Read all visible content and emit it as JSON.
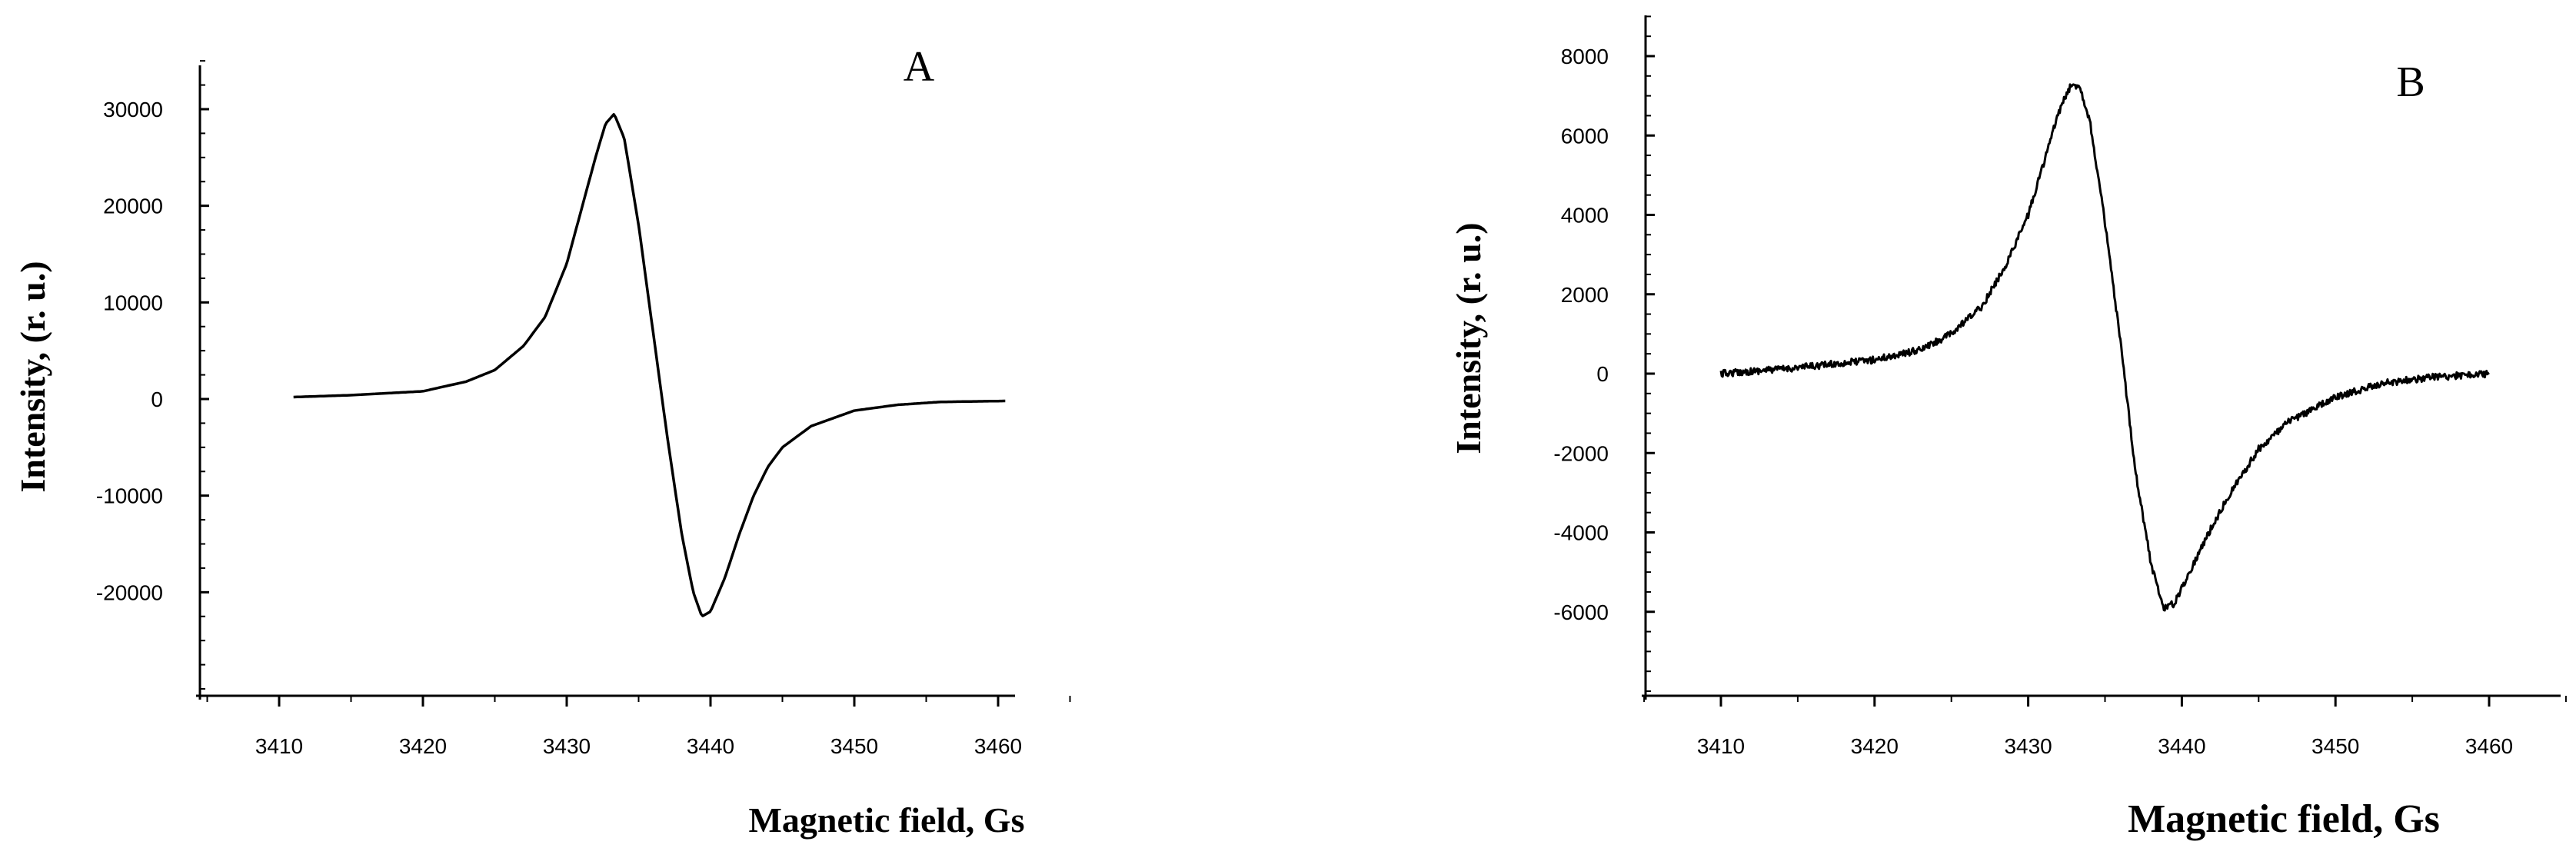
{
  "chart_data": [
    {
      "type": "line",
      "panel_label": "A",
      "xlabel": "Magnetic field, Gs",
      "ylabel": "Intensity, (r. u.)",
      "xlim": [
        3405,
        3465
      ],
      "ylim": [
        -30000,
        35000
      ],
      "xticks": [
        3410,
        3420,
        3430,
        3440,
        3450,
        3460
      ],
      "xtick_labels": [
        "3410",
        "3420",
        "3430",
        "3440",
        "3450",
        "3460"
      ],
      "yticks": [
        -20000,
        -10000,
        0,
        10000,
        20000,
        30000
      ],
      "ytick_labels": [
        "-20000",
        "-10000",
        "0",
        "10000",
        "20000",
        "30000"
      ],
      "grid": false,
      "noise": false,
      "series": [
        {
          "x": [
            3411,
            3415,
            3420,
            3423,
            3425,
            3427,
            3428.5,
            3430,
            3431,
            3432,
            3432.7,
            3433.3,
            3434,
            3435,
            3436,
            3437,
            3438,
            3438.8,
            3439.4,
            3440,
            3441,
            3442,
            3443,
            3444,
            3445,
            3447,
            3450,
            3453,
            3456,
            3460.5
          ],
          "values": [
            200,
            400,
            800,
            1800,
            3000,
            5500,
            8500,
            14000,
            19500,
            25000,
            28500,
            29500,
            27000,
            18000,
            7000,
            -4000,
            -14000,
            -20000,
            -22500,
            -22000,
            -18500,
            -14000,
            -10000,
            -7000,
            -5000,
            -2800,
            -1200,
            -600,
            -300,
            -200
          ]
        }
      ]
    },
    {
      "type": "line",
      "panel_label": "B",
      "xlabel": "Magnetic field, Gs",
      "ylabel": "Intensity, (r. u.)",
      "xlim": [
        3405,
        3465
      ],
      "ylim": [
        -8500,
        9000
      ],
      "xticks": [
        3410,
        3420,
        3430,
        3440,
        3450,
        3460
      ],
      "xtick_labels": [
        "3410",
        "3420",
        "3430",
        "3440",
        "3450",
        "3460"
      ],
      "yticks": [
        -6000,
        -4000,
        -2000,
        0,
        2000,
        4000,
        6000,
        8000
      ],
      "ytick_labels": [
        "-6000",
        "-4000",
        "-2000",
        "0",
        "2000",
        "4000",
        "6000",
        "8000"
      ],
      "grid": false,
      "noise": true,
      "series": [
        {
          "x": [
            3410,
            3415,
            3420,
            3423,
            3425,
            3427,
            3428.5,
            3430,
            3431,
            3432,
            3432.7,
            3433.3,
            3434,
            3435,
            3436,
            3437,
            3438,
            3438.8,
            3439.5,
            3440.5,
            3441.5,
            3443,
            3444,
            3445,
            3447,
            3450,
            3453,
            3456,
            3460
          ],
          "values": [
            0,
            150,
            350,
            600,
            1000,
            1700,
            2700,
            4000,
            5300,
            6600,
            7200,
            7300,
            6400,
            3800,
            800,
            -2500,
            -4800,
            -5900,
            -5800,
            -5000,
            -4200,
            -3100,
            -2500,
            -1900,
            -1200,
            -600,
            -250,
            -100,
            0
          ]
        }
      ]
    }
  ]
}
